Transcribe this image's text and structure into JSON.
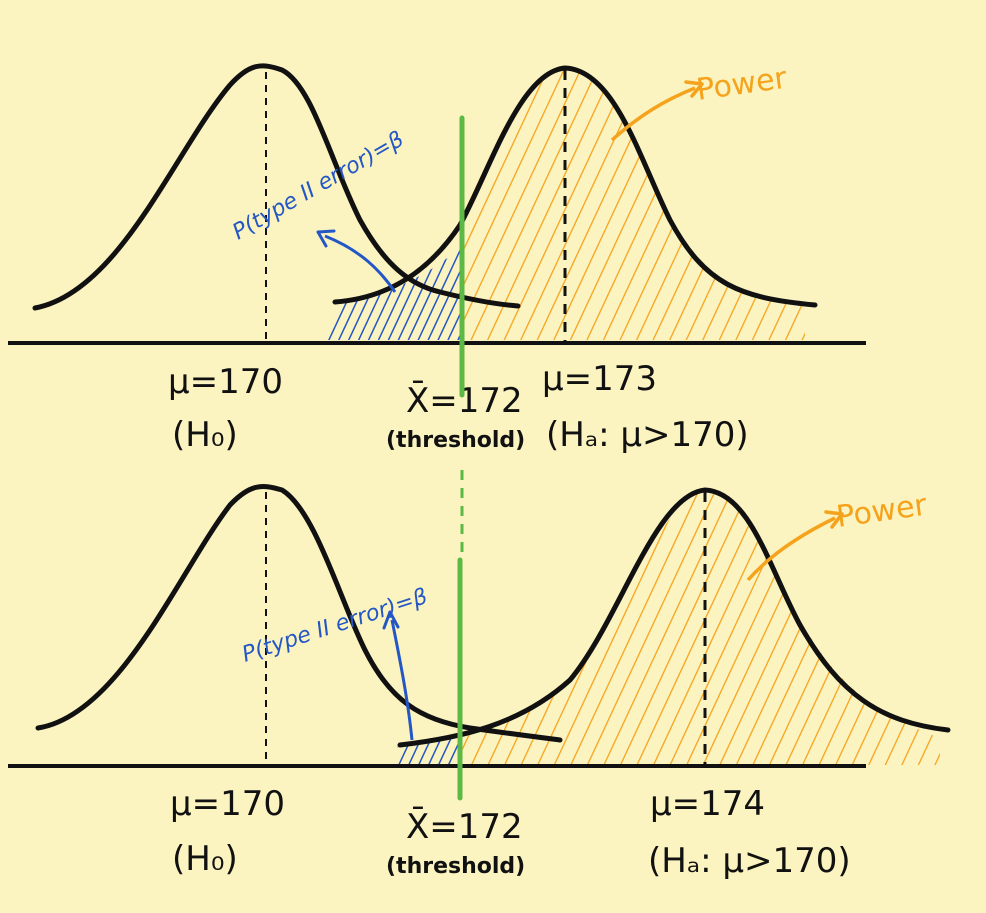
{
  "colors": {
    "background": "#fbf4c0",
    "curve": "#111111",
    "threshold_line": "#5cb945",
    "beta_fill": "#2457c5",
    "power_fill": "#f5a31c"
  },
  "top": {
    "h0_mean": "μ=170",
    "h0_label": "(H₀)",
    "threshold_value": "X̄=172",
    "threshold_label": "(threshold)",
    "ha_mean": "μ=173",
    "ha_label": "(Hₐ: μ>170)",
    "beta_label": "P(type II error)=β",
    "power_label": "Power"
  },
  "bottom": {
    "h0_mean": "μ=170",
    "h0_label": "(H₀)",
    "threshold_value": "X̄=172",
    "threshold_label": "(threshold)",
    "ha_mean": "μ=174",
    "ha_label": "(Hₐ: μ>170)",
    "beta_label": "P(type II error)=β",
    "power_label": "Power"
  }
}
